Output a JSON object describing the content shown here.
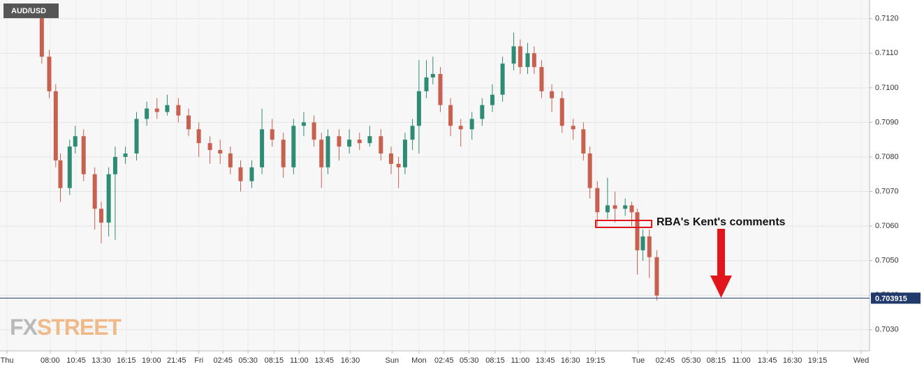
{
  "chart_data": {
    "type": "candlestick",
    "title": "AUD/USD",
    "watermark_parts": [
      "FX",
      "STREET"
    ],
    "annotation": "RBA's Kent's comments",
    "up_color": "#2e8b74",
    "down_color": "#c8604f",
    "last_price": 0.703915,
    "last_price_color": "#1f3a6b",
    "grid": true,
    "xlim": [
      0,
      93.6
    ],
    "ylim": [
      0.70239,
      0.71254
    ],
    "yticks": [
      {
        "value": 0.703,
        "label": "0.7030"
      },
      {
        "value": 0.704,
        "label": "0.7040"
      },
      {
        "value": 0.705,
        "label": "0.7050"
      },
      {
        "value": 0.706,
        "label": "0.7060"
      },
      {
        "value": 0.707,
        "label": "0.7070"
      },
      {
        "value": 0.708,
        "label": "0.7080"
      },
      {
        "value": 0.709,
        "label": "0.7090"
      },
      {
        "value": 0.71,
        "label": "0.7100"
      },
      {
        "value": 0.711,
        "label": "0.7110"
      },
      {
        "value": 0.712,
        "label": "0.7120"
      }
    ],
    "xticks": [
      {
        "value": 0.75,
        "label": "Thu"
      },
      {
        "value": 5.4,
        "label": "08:00"
      },
      {
        "value": 8.2,
        "label": "10:45"
      },
      {
        "value": 10.9,
        "label": "13:30"
      },
      {
        "value": 13.6,
        "label": "16:15"
      },
      {
        "value": 16.3,
        "label": "19:00"
      },
      {
        "value": 19.0,
        "label": "21:45"
      },
      {
        "value": 21.4,
        "label": "Fri"
      },
      {
        "value": 24.0,
        "label": "02:45"
      },
      {
        "value": 26.7,
        "label": "05:30"
      },
      {
        "value": 29.5,
        "label": "08:15"
      },
      {
        "value": 32.2,
        "label": "11:00"
      },
      {
        "value": 34.9,
        "label": "13:45"
      },
      {
        "value": 37.7,
        "label": "16:30"
      },
      {
        "value": 42.2,
        "label": "Sun"
      },
      {
        "value": 45.1,
        "label": "Mon"
      },
      {
        "value": 47.8,
        "label": "02:45"
      },
      {
        "value": 50.5,
        "label": "05:30"
      },
      {
        "value": 53.3,
        "label": "08:15"
      },
      {
        "value": 56.0,
        "label": "11:00"
      },
      {
        "value": 58.7,
        "label": "13:45"
      },
      {
        "value": 61.4,
        "label": "16:30"
      },
      {
        "value": 64.1,
        "label": "19:15"
      },
      {
        "value": 68.7,
        "label": "Tue"
      },
      {
        "value": 71.6,
        "label": "02:45"
      },
      {
        "value": 74.4,
        "label": "05:30"
      },
      {
        "value": 77.1,
        "label": "08:15"
      },
      {
        "value": 79.8,
        "label": "11:00"
      },
      {
        "value": 82.6,
        "label": "13:45"
      },
      {
        "value": 85.3,
        "label": "16:30"
      },
      {
        "value": 88.0,
        "label": "19:15"
      },
      {
        "value": 92.7,
        "label": "Wed"
      }
    ],
    "x": [
      4.5,
      5.3,
      6.0,
      6.5,
      7.5,
      8.1,
      9.0,
      10.2,
      10.9,
      11.7,
      12.4,
      13.5,
      14.7,
      15.8,
      16.9,
      18.0,
      19.2,
      20.3,
      21.4,
      22.6,
      23.7,
      24.8,
      25.9,
      27.1,
      28.2,
      29.3,
      30.5,
      31.6,
      32.7,
      33.8,
      34.6,
      35.3,
      36.5,
      37.6,
      38.7,
      39.8,
      41.0,
      42.1,
      42.9,
      43.6,
      44.4,
      45.1,
      45.9,
      46.6,
      47.4,
      48.5,
      49.6,
      50.8,
      51.9,
      53.0,
      54.1,
      55.3,
      56.0,
      56.8,
      57.5,
      58.3,
      59.4,
      60.5,
      61.7,
      62.8,
      63.5,
      64.3,
      65.4,
      66.2,
      67.3,
      68.0,
      68.6,
      69.2,
      69.9,
      70.7
    ],
    "open": [
      0.7121,
      0.7109,
      0.7099,
      0.7079,
      0.7071,
      0.7083,
      0.7086,
      0.7075,
      0.7065,
      0.7061,
      0.7075,
      0.708,
      0.7081,
      0.7091,
      0.7094,
      0.7093,
      0.7095,
      0.7092,
      0.7088,
      0.7084,
      0.7082,
      0.7081,
      0.7077,
      0.7073,
      0.7077,
      0.7088,
      0.7085,
      0.7077,
      0.7089,
      0.709,
      0.7085,
      0.7077,
      0.7086,
      0.7083,
      0.7085,
      0.7084,
      0.7086,
      0.7081,
      0.7078,
      0.7077,
      0.7085,
      0.7089,
      0.7099,
      0.7103,
      0.7104,
      0.7095,
      0.7089,
      0.7088,
      0.7091,
      0.7095,
      0.7098,
      0.7107,
      0.7112,
      0.7106,
      0.711,
      0.7106,
      0.7099,
      0.7097,
      0.7089,
      0.7088,
      0.7081,
      0.7071,
      0.7064,
      0.7066,
      0.7065,
      0.7066,
      0.7064,
      0.7053,
      0.7057,
      0.7051
    ],
    "high": [
      0.7123,
      0.7111,
      0.7101,
      0.7081,
      0.7085,
      0.7089,
      0.7088,
      0.7077,
      0.7067,
      0.7077,
      0.7083,
      0.7083,
      0.7093,
      0.7096,
      0.7097,
      0.7098,
      0.7097,
      0.7094,
      0.709,
      0.7086,
      0.7085,
      0.7083,
      0.7079,
      0.7079,
      0.7094,
      0.7091,
      0.7087,
      0.7091,
      0.7093,
      0.7092,
      0.7087,
      0.7088,
      0.7088,
      0.7088,
      0.7087,
      0.7089,
      0.7088,
      0.7083,
      0.708,
      0.7087,
      0.7091,
      0.7108,
      0.7108,
      0.7109,
      0.7106,
      0.7097,
      0.7091,
      0.7093,
      0.7097,
      0.7101,
      0.7109,
      0.7116,
      0.7114,
      0.7113,
      0.7112,
      0.7108,
      0.7101,
      0.7099,
      0.7091,
      0.709,
      0.7083,
      0.7073,
      0.7074,
      0.707,
      0.7068,
      0.7067,
      0.7065,
      0.7059,
      0.7059,
      0.7053
    ],
    "low": [
      0.7107,
      0.7097,
      0.7077,
      0.7067,
      0.7069,
      0.7081,
      0.7073,
      0.7059,
      0.7055,
      0.7057,
      0.7056,
      0.7078,
      0.7079,
      0.7089,
      0.7091,
      0.7092,
      0.709,
      0.7086,
      0.708,
      0.7078,
      0.7078,
      0.7075,
      0.707,
      0.7071,
      0.7075,
      0.7083,
      0.7074,
      0.7075,
      0.7086,
      0.7083,
      0.7071,
      0.7075,
      0.7079,
      0.7081,
      0.7082,
      0.7083,
      0.7079,
      0.7075,
      0.7071,
      0.7075,
      0.7082,
      0.7081,
      0.7097,
      0.7101,
      0.7093,
      0.7086,
      0.7083,
      0.7085,
      0.7089,
      0.7093,
      0.7096,
      0.7105,
      0.7104,
      0.7104,
      0.7104,
      0.7097,
      0.7093,
      0.7087,
      0.7085,
      0.7079,
      0.7068,
      0.706,
      0.7062,
      0.7061,
      0.7063,
      0.706,
      0.7046,
      0.705,
      0.7045,
      0.70385
    ],
    "close": [
      0.7109,
      0.7099,
      0.7079,
      0.7071,
      0.7083,
      0.7086,
      0.7075,
      0.7065,
      0.7061,
      0.7075,
      0.708,
      0.7081,
      0.7091,
      0.7094,
      0.7093,
      0.7095,
      0.7092,
      0.7088,
      0.7084,
      0.7082,
      0.7081,
      0.7077,
      0.7073,
      0.7077,
      0.7088,
      0.7085,
      0.7077,
      0.7089,
      0.709,
      0.7085,
      0.7077,
      0.7086,
      0.7083,
      0.7085,
      0.7084,
      0.7086,
      0.7081,
      0.7078,
      0.7077,
      0.7085,
      0.7089,
      0.7099,
      0.7103,
      0.7104,
      0.7095,
      0.7089,
      0.7088,
      0.7091,
      0.7095,
      0.7098,
      0.7107,
      0.7112,
      0.7106,
      0.711,
      0.7106,
      0.7099,
      0.7097,
      0.7089,
      0.7088,
      0.7081,
      0.7071,
      0.7064,
      0.7066,
      0.7065,
      0.7066,
      0.7064,
      0.7053,
      0.7057,
      0.7051,
      0.70399
    ]
  }
}
